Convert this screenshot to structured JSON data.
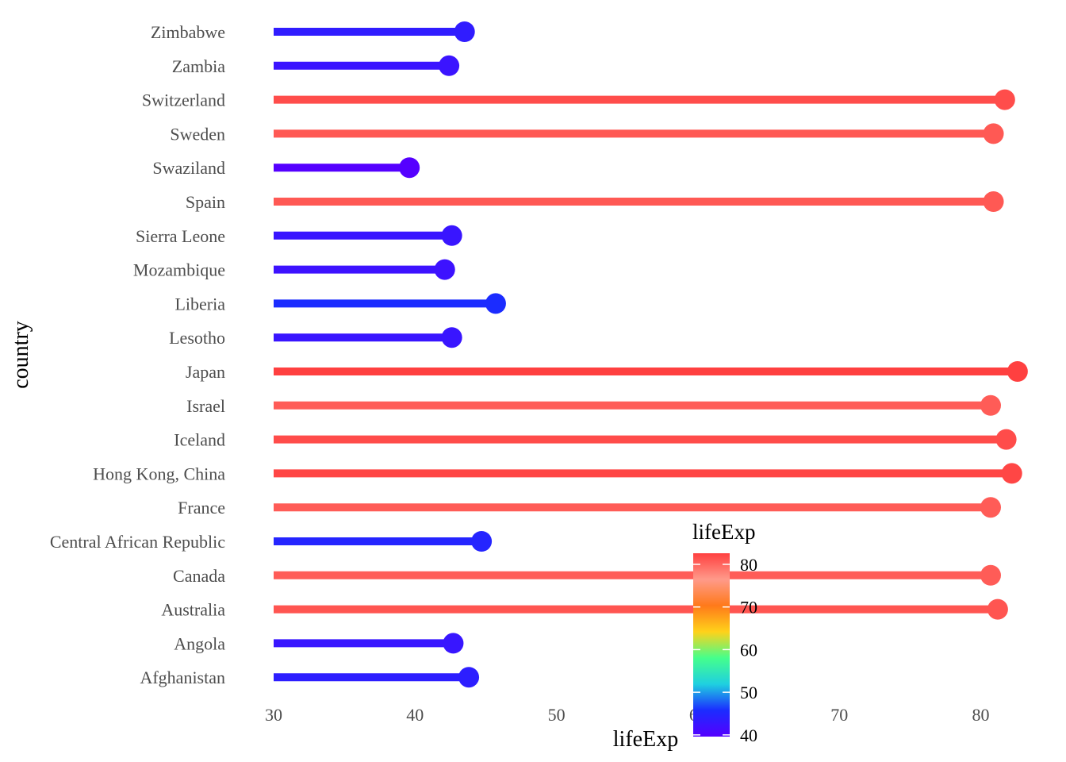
{
  "chart_data": {
    "type": "lollipop",
    "xlabel": "lifeExp",
    "ylabel": "country",
    "xlim": [
      30,
      83
    ],
    "xticks": [
      30,
      40,
      50,
      60,
      70,
      80
    ],
    "grid": false,
    "legend": {
      "title": "lifeExp",
      "position": "bottom-center",
      "ticks": [
        40,
        50,
        60,
        70,
        80
      ],
      "range": [
        39.6,
        82.6
      ],
      "colors": [
        "#5500ff",
        "#1b2cff",
        "#1fd0e0",
        "#45ff8c",
        "#ffd21a",
        "#ff7a1a",
        "#ff9a8a",
        "#ff4040"
      ]
    },
    "categories": [
      "Zimbabwe",
      "Zambia",
      "Switzerland",
      "Sweden",
      "Swaziland",
      "Spain",
      "Sierra Leone",
      "Mozambique",
      "Liberia",
      "Lesotho",
      "Japan",
      "Israel",
      "Iceland",
      "Hong Kong, China",
      "France",
      "Central African Republic",
      "Canada",
      "Australia",
      "Angola",
      "Afghanistan"
    ],
    "values": [
      43.5,
      42.4,
      81.7,
      80.9,
      39.6,
      80.9,
      42.6,
      42.1,
      45.7,
      42.6,
      82.6,
      80.7,
      81.8,
      82.2,
      80.7,
      44.7,
      80.7,
      81.2,
      42.7,
      43.8
    ]
  }
}
